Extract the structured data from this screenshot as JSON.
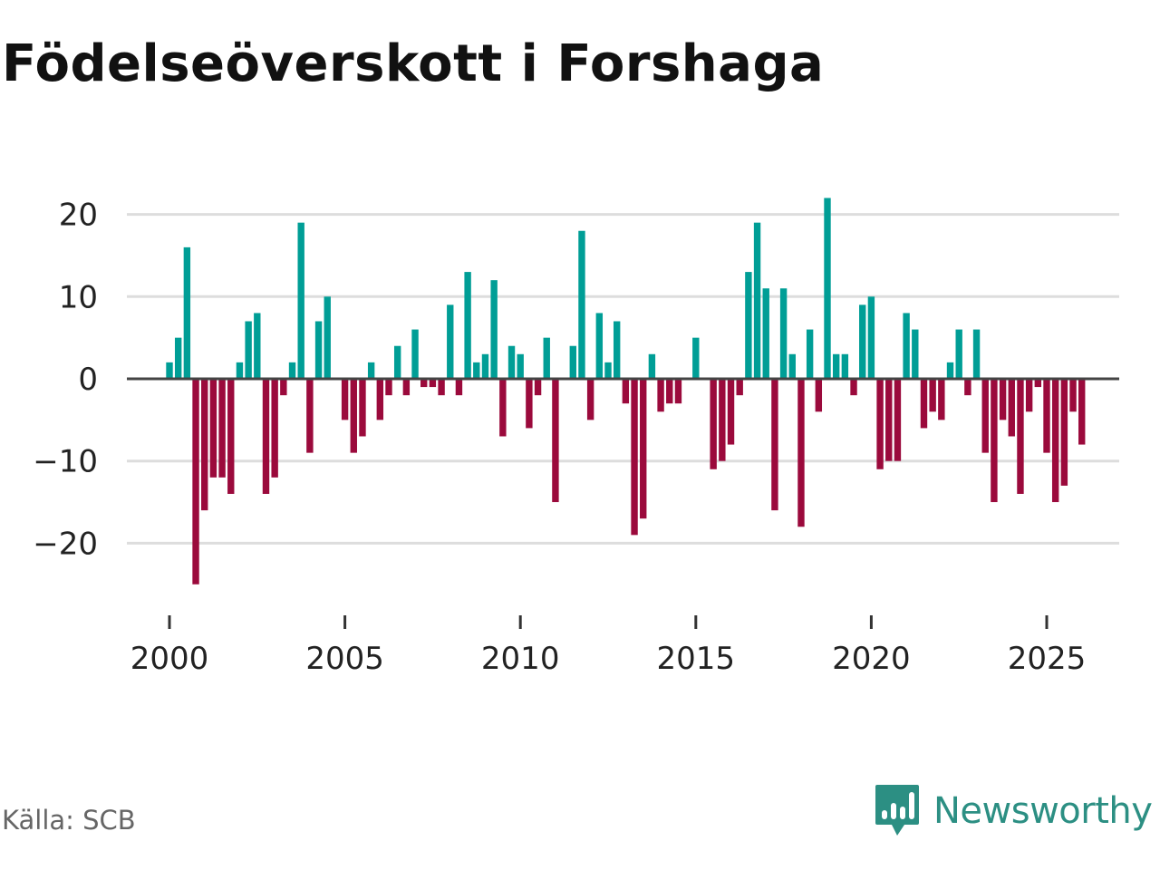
{
  "title": "Födelseöverskott i Forshaga",
  "source": "Källa: SCB",
  "brand": {
    "name": "Newsworthy",
    "logo_icon": "newsworthy-chart-bubble-icon"
  },
  "colors": {
    "positive": "#009e96",
    "negative": "#9b0a3c",
    "zero_line": "#444444",
    "grid": "#dddddd",
    "brand": "#2c8f83"
  },
  "chart_data": {
    "type": "bar",
    "title": "Födelseöverskott i Forshaga",
    "xlabel": "",
    "ylabel": "",
    "frequency": "quarterly",
    "x_start": 2000.0,
    "x_step": 0.25,
    "xlim": [
      1999.0,
      2027.0
    ],
    "ylim": [
      -28,
      24
    ],
    "yticks": [
      20,
      10,
      0,
      -10,
      -20
    ],
    "ytick_labels": [
      "20",
      "10",
      "0",
      "−10",
      "−20"
    ],
    "xticks": [
      2000,
      2005,
      2010,
      2015,
      2020,
      2025
    ],
    "xtick_labels": [
      "2000",
      "2005",
      "2010",
      "2015",
      "2020",
      "2025"
    ],
    "values": [
      2,
      5,
      16,
      -25,
      -16,
      -12,
      -12,
      -14,
      2,
      7,
      8,
      -14,
      -12,
      -2,
      2,
      19,
      -9,
      7,
      10,
      0,
      -5,
      -9,
      -7,
      2,
      -5,
      -2,
      4,
      -2,
      6,
      -1,
      -1,
      -2,
      9,
      -2,
      13,
      2,
      3,
      12,
      -7,
      4,
      3,
      -6,
      -2,
      5,
      -15,
      0,
      4,
      18,
      -5,
      8,
      2,
      7,
      -3,
      -19,
      -17,
      3,
      -4,
      -3,
      -3,
      0,
      5,
      0,
      -11,
      -10,
      -8,
      -2,
      13,
      19,
      11,
      -16,
      11,
      3,
      -18,
      6,
      -4,
      22,
      3,
      3,
      -2,
      9,
      10,
      -11,
      -10,
      -10,
      8,
      6,
      -6,
      -4,
      -5,
      2,
      6,
      -2,
      6,
      -9,
      -15,
      -5,
      -7,
      -14,
      -4,
      -1,
      -9,
      -15,
      -13,
      -4,
      -8
    ]
  }
}
